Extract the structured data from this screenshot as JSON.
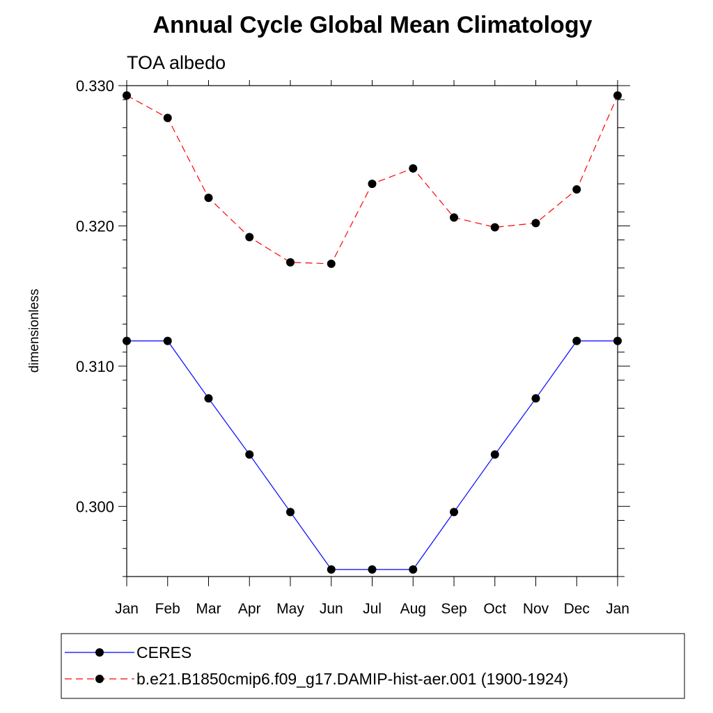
{
  "chart_data": {
    "type": "line",
    "title": "Annual Cycle Global Mean Climatology",
    "subtitle": "TOA albedo",
    "ylabel": "dimensionless",
    "xlabel": "",
    "categories": [
      "Jan",
      "Feb",
      "Mar",
      "Apr",
      "May",
      "Jun",
      "Jul",
      "Aug",
      "Sep",
      "Oct",
      "Nov",
      "Dec",
      "Jan"
    ],
    "ylim": [
      0.295,
      0.33
    ],
    "yticks": [
      0.3,
      0.31,
      0.32,
      0.33
    ],
    "ytick_labels": [
      "0.300",
      "0.310",
      "0.320",
      "0.330"
    ],
    "grid": false,
    "legend_position": "bottom",
    "series": [
      {
        "name": "CERES",
        "color": "#0000ff",
        "dash": "solid",
        "marker": "filled-circle",
        "values": [
          0.3118,
          0.3118,
          0.3077,
          0.3037,
          0.2996,
          0.2955,
          0.2955,
          0.2955,
          0.2996,
          0.3037,
          0.3077,
          0.3118,
          0.3118
        ]
      },
      {
        "name": "b.e21.B1850cmip6.f09_g17.DAMIP-hist-aer.001 (1900-1924)",
        "color": "#ff0000",
        "dash": "dashed",
        "marker": "filled-circle",
        "values": [
          0.3293,
          0.3277,
          0.322,
          0.3192,
          0.3174,
          0.3173,
          0.323,
          0.3241,
          0.3206,
          0.3199,
          0.3202,
          0.3226,
          0.3293
        ]
      }
    ]
  }
}
